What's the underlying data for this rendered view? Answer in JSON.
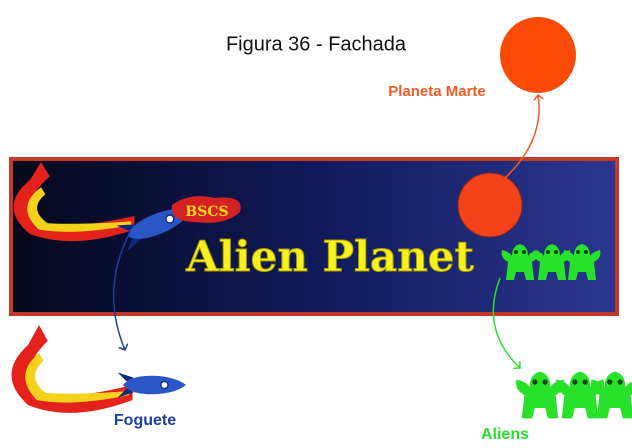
{
  "caption": "Figura 36 - Fachada",
  "sign": {
    "badge": "BSCS",
    "title": "Alien Planet"
  },
  "labels": {
    "planet": "Planeta Marte",
    "rocket": "Foguete",
    "aliens": "Aliens"
  }
}
